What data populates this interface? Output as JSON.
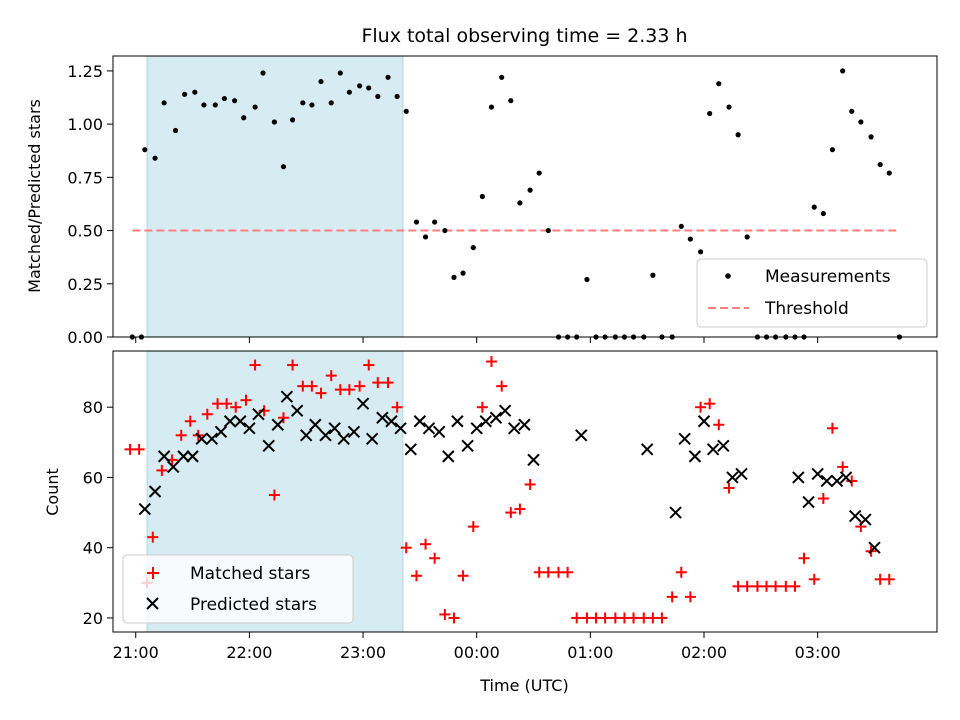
{
  "chart_data": [
    {
      "type": "scatter",
      "title": "Flux total observing time = 2.33 h",
      "ylabel": "Matched/Predicted stars",
      "xlabel": "",
      "xlim": [
        -0.2,
        7.05
      ],
      "ylim": [
        0,
        1.32
      ],
      "x_units": "hours since 21:00 UTC",
      "x_ticks": [
        0,
        1,
        2,
        3,
        4,
        5,
        6
      ],
      "y_ticks": [
        0.0,
        0.25,
        0.5,
        0.75,
        1.0,
        1.25
      ],
      "y_tick_labels": [
        "0.00",
        "0.25",
        "0.50",
        "0.75",
        "1.00",
        "1.25"
      ],
      "shaded_span": [
        0.1,
        2.35
      ],
      "legend": {
        "position": "lower-right",
        "entries": [
          "Measurements",
          "Threshold"
        ]
      },
      "series": [
        {
          "name": "Measurements",
          "kind": "points",
          "color": "#000000",
          "points": [
            [
              -0.03,
              0
            ],
            [
              0.05,
              0
            ],
            [
              0.08,
              0.88
            ],
            [
              0.17,
              0.84
            ],
            [
              0.25,
              1.1
            ],
            [
              0.35,
              0.97
            ],
            [
              0.43,
              1.14
            ],
            [
              0.52,
              1.15
            ],
            [
              0.6,
              1.09
            ],
            [
              0.7,
              1.09
            ],
            [
              0.78,
              1.12
            ],
            [
              0.87,
              1.11
            ],
            [
              0.95,
              1.03
            ],
            [
              1.05,
              1.08
            ],
            [
              1.12,
              1.24
            ],
            [
              1.22,
              1.01
            ],
            [
              1.3,
              0.8
            ],
            [
              1.38,
              1.02
            ],
            [
              1.47,
              1.1
            ],
            [
              1.55,
              1.09
            ],
            [
              1.63,
              1.2
            ],
            [
              1.72,
              1.1
            ],
            [
              1.8,
              1.24
            ],
            [
              1.88,
              1.15
            ],
            [
              1.97,
              1.18
            ],
            [
              2.05,
              1.17
            ],
            [
              2.13,
              1.13
            ],
            [
              2.22,
              1.22
            ],
            [
              2.3,
              1.13
            ],
            [
              2.38,
              1.06
            ],
            [
              2.47,
              0.54
            ],
            [
              2.55,
              0.47
            ],
            [
              2.63,
              0.54
            ],
            [
              2.72,
              0.5
            ],
            [
              2.8,
              0.28
            ],
            [
              2.88,
              0.3
            ],
            [
              2.97,
              0.42
            ],
            [
              3.05,
              0.66
            ],
            [
              3.13,
              1.08
            ],
            [
              3.22,
              1.22
            ],
            [
              3.3,
              1.11
            ],
            [
              3.38,
              0.63
            ],
            [
              3.47,
              0.69
            ],
            [
              3.55,
              0.77
            ],
            [
              3.63,
              0.5
            ],
            [
              3.72,
              0
            ],
            [
              3.8,
              0
            ],
            [
              3.88,
              0
            ],
            [
              3.97,
              0.27
            ],
            [
              4.05,
              0
            ],
            [
              4.13,
              0
            ],
            [
              4.22,
              0
            ],
            [
              4.3,
              0
            ],
            [
              4.38,
              0
            ],
            [
              4.47,
              0
            ],
            [
              4.55,
              0.29
            ],
            [
              4.63,
              0
            ],
            [
              4.72,
              0
            ],
            [
              4.8,
              0.52
            ],
            [
              4.88,
              0.46
            ],
            [
              4.97,
              0.4
            ],
            [
              5.05,
              1.05
            ],
            [
              5.13,
              1.19
            ],
            [
              5.22,
              1.08
            ],
            [
              5.3,
              0.95
            ],
            [
              5.38,
              0.47
            ],
            [
              5.47,
              0
            ],
            [
              5.55,
              0
            ],
            [
              5.63,
              0
            ],
            [
              5.72,
              0
            ],
            [
              5.8,
              0
            ],
            [
              5.88,
              0
            ],
            [
              5.97,
              0.61
            ],
            [
              6.05,
              0.58
            ],
            [
              6.13,
              0.88
            ],
            [
              6.22,
              1.25
            ],
            [
              6.3,
              1.06
            ],
            [
              6.38,
              1.01
            ],
            [
              6.47,
              0.94
            ],
            [
              6.55,
              0.81
            ],
            [
              6.63,
              0.77
            ],
            [
              6.72,
              0
            ]
          ]
        },
        {
          "name": "Threshold",
          "kind": "dashed-line",
          "color": "#ff7f7f",
          "x": [
            -0.03,
            6.72
          ],
          "y": [
            0.5,
            0.5
          ]
        }
      ]
    },
    {
      "type": "scatter",
      "title": "",
      "ylabel": "Count",
      "xlabel": "Time (UTC)",
      "xlim": [
        -0.2,
        7.05
      ],
      "ylim": [
        16,
        96
      ],
      "x_units": "hours since 21:00 UTC",
      "x_ticks": [
        0,
        1,
        2,
        3,
        4,
        5,
        6
      ],
      "x_tick_labels": [
        "21:00",
        "22:00",
        "23:00",
        "00:00",
        "01:00",
        "02:00",
        "03:00"
      ],
      "y_ticks": [
        20,
        40,
        60,
        80
      ],
      "y_tick_labels": [
        "20",
        "40",
        "60",
        "80"
      ],
      "shaded_span": [
        0.1,
        2.35
      ],
      "legend": {
        "position": "lower-left",
        "entries": [
          "Matched stars",
          "Predicted stars"
        ]
      },
      "series": [
        {
          "name": "Matched stars",
          "marker": "plus",
          "color": "#ff0000",
          "points": [
            [
              -0.05,
              68
            ],
            [
              0.03,
              68
            ],
            [
              0.1,
              30
            ],
            [
              0.15,
              43
            ],
            [
              0.23,
              62
            ],
            [
              0.32,
              65
            ],
            [
              0.4,
              72
            ],
            [
              0.48,
              76
            ],
            [
              0.55,
              72
            ],
            [
              0.63,
              78
            ],
            [
              0.72,
              81
            ],
            [
              0.8,
              81
            ],
            [
              0.88,
              80
            ],
            [
              0.97,
              82
            ],
            [
              1.05,
              92
            ],
            [
              1.13,
              79
            ],
            [
              1.22,
              55
            ],
            [
              1.3,
              77
            ],
            [
              1.38,
              92
            ],
            [
              1.47,
              86
            ],
            [
              1.55,
              86
            ],
            [
              1.63,
              84
            ],
            [
              1.72,
              89
            ],
            [
              1.8,
              85
            ],
            [
              1.88,
              85
            ],
            [
              1.97,
              86
            ],
            [
              2.05,
              92
            ],
            [
              2.13,
              87
            ],
            [
              2.22,
              87
            ],
            [
              2.3,
              80
            ],
            [
              2.38,
              40
            ],
            [
              2.47,
              32
            ],
            [
              2.55,
              41
            ],
            [
              2.63,
              37
            ],
            [
              2.72,
              21
            ],
            [
              2.8,
              20
            ],
            [
              2.88,
              32
            ],
            [
              2.97,
              46
            ],
            [
              3.05,
              80
            ],
            [
              3.13,
              93
            ],
            [
              3.22,
              86
            ],
            [
              3.3,
              50
            ],
            [
              3.38,
              51
            ],
            [
              3.47,
              58
            ],
            [
              3.55,
              33
            ],
            [
              3.63,
              33
            ],
            [
              3.72,
              33
            ],
            [
              3.8,
              33
            ],
            [
              3.88,
              20
            ],
            [
              3.97,
              20
            ],
            [
              4.05,
              20
            ],
            [
              4.13,
              20
            ],
            [
              4.22,
              20
            ],
            [
              4.3,
              20
            ],
            [
              4.38,
              20
            ],
            [
              4.47,
              20
            ],
            [
              4.55,
              20
            ],
            [
              4.63,
              20
            ],
            [
              4.72,
              26
            ],
            [
              4.8,
              33
            ],
            [
              4.88,
              26
            ],
            [
              4.97,
              80
            ],
            [
              5.05,
              81
            ],
            [
              5.13,
              75
            ],
            [
              5.22,
              57
            ],
            [
              5.3,
              29
            ],
            [
              5.38,
              29
            ],
            [
              5.47,
              29
            ],
            [
              5.55,
              29
            ],
            [
              5.63,
              29
            ],
            [
              5.72,
              29
            ],
            [
              5.8,
              29
            ],
            [
              5.88,
              37
            ],
            [
              5.97,
              31
            ],
            [
              6.05,
              54
            ],
            [
              6.13,
              74
            ],
            [
              6.22,
              63
            ],
            [
              6.3,
              59
            ],
            [
              6.38,
              46
            ],
            [
              6.47,
              39
            ],
            [
              6.55,
              31
            ],
            [
              6.63,
              31
            ]
          ]
        },
        {
          "name": "Predicted stars",
          "marker": "x",
          "color": "#000000",
          "points": [
            [
              0.08,
              51
            ],
            [
              0.17,
              56
            ],
            [
              0.25,
              66
            ],
            [
              0.33,
              63
            ],
            [
              0.42,
              66
            ],
            [
              0.5,
              66
            ],
            [
              0.58,
              71
            ],
            [
              0.67,
              71
            ],
            [
              0.75,
              73
            ],
            [
              0.83,
              76
            ],
            [
              0.92,
              76
            ],
            [
              1.0,
              74
            ],
            [
              1.08,
              78
            ],
            [
              1.17,
              69
            ],
            [
              1.25,
              75
            ],
            [
              1.33,
              83
            ],
            [
              1.42,
              79
            ],
            [
              1.5,
              72
            ],
            [
              1.58,
              75
            ],
            [
              1.67,
              72
            ],
            [
              1.75,
              74
            ],
            [
              1.83,
              71
            ],
            [
              1.92,
              73
            ],
            [
              2.0,
              81
            ],
            [
              2.08,
              71
            ],
            [
              2.17,
              77
            ],
            [
              2.25,
              76
            ],
            [
              2.33,
              74
            ],
            [
              2.42,
              68
            ],
            [
              2.5,
              76
            ],
            [
              2.58,
              74
            ],
            [
              2.67,
              73
            ],
            [
              2.75,
              66
            ],
            [
              2.83,
              76
            ],
            [
              2.92,
              69
            ],
            [
              3.0,
              74
            ],
            [
              3.08,
              76
            ],
            [
              3.17,
              77
            ],
            [
              3.25,
              79
            ],
            [
              3.33,
              74
            ],
            [
              3.42,
              75
            ],
            [
              3.5,
              65
            ],
            [
              3.92,
              72
            ],
            [
              4.5,
              68
            ],
            [
              4.75,
              50
            ],
            [
              4.83,
              71
            ],
            [
              4.92,
              66
            ],
            [
              5.0,
              76
            ],
            [
              5.08,
              68
            ],
            [
              5.17,
              69
            ],
            [
              5.25,
              60
            ],
            [
              5.33,
              61
            ],
            [
              5.83,
              60
            ],
            [
              5.92,
              53
            ],
            [
              6.0,
              61
            ],
            [
              6.08,
              59
            ],
            [
              6.17,
              59
            ],
            [
              6.25,
              60
            ],
            [
              6.33,
              49
            ],
            [
              6.42,
              48
            ],
            [
              6.5,
              40
            ]
          ]
        }
      ]
    }
  ]
}
